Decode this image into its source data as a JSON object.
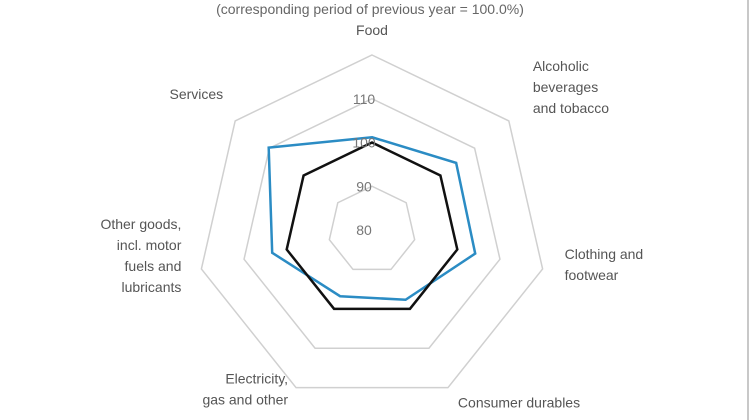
{
  "chart_data": {
    "type": "radar",
    "subtitle": "(corresponding period of previous year = 100.0%)",
    "categories": [
      [
        "Food"
      ],
      [
        "Alcoholic",
        "beverages",
        "and tobacco"
      ],
      [
        "Clothing and",
        "footwear"
      ],
      [
        "Consumer durables"
      ],
      [
        "Electricity,",
        "gas and other"
      ],
      [
        "Other goods,",
        "incl. motor",
        "fuels and",
        "lubricants"
      ],
      [
        "Services"
      ]
    ],
    "series": [
      {
        "color": "#2b8cc4",
        "values": [
          101.2,
          104.6,
          104.2,
          97.7,
          96.8,
          103.4,
          110.2
        ]
      },
      {
        "color": "#111111",
        "values": [
          100,
          100,
          100,
          100,
          100,
          100,
          100
        ]
      }
    ],
    "rlim": [
      80,
      120
    ],
    "ticks": [
      "80",
      "90",
      "100",
      "110"
    ],
    "tick_values": [
      80,
      90,
      100,
      110,
      120
    ],
    "grid": true,
    "grid_color": "#d0d0d0"
  }
}
